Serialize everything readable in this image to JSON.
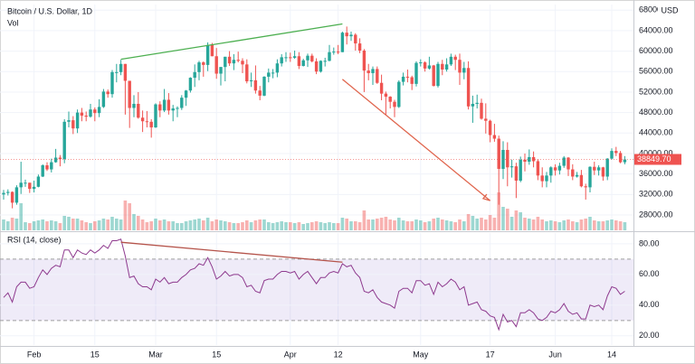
{
  "chart_data": [
    {
      "type": "candlestick",
      "title": "Bitcoin / U.S. Dollar, 1D",
      "volume_label": "Vol",
      "currency": "USD",
      "up_color": "#26a69a",
      "down_color": "#ef5350",
      "grid": true,
      "xticks": [
        {
          "value": 7,
          "label": "Feb"
        },
        {
          "value": 21,
          "label": "15"
        },
        {
          "value": 35,
          "label": "Mar"
        },
        {
          "value": 49,
          "label": "15"
        },
        {
          "value": 66,
          "label": "Apr"
        },
        {
          "value": 77,
          "label": "12"
        },
        {
          "value": 96,
          "label": "May"
        },
        {
          "value": 112,
          "label": "17"
        },
        {
          "value": 127,
          "label": "Jun"
        },
        {
          "value": 140,
          "label": "14"
        }
      ],
      "ylim": [
        25000,
        69100
      ],
      "yticks": [
        {
          "value": 28000,
          "label": "28000.00"
        },
        {
          "value": 32000,
          "label": "32000.00"
        },
        {
          "value": 36000,
          "label": "36000.00"
        },
        {
          "value": 40000,
          "label": "40000.00"
        },
        {
          "value": 44000,
          "label": "44000.00"
        },
        {
          "value": 48000,
          "label": "48000.00"
        },
        {
          "value": 52000,
          "label": "52000.00"
        },
        {
          "value": 56000,
          "label": "56000.00"
        },
        {
          "value": 60000,
          "label": "60000.00"
        },
        {
          "value": 64000,
          "label": "64000.00"
        },
        {
          "value": 68000,
          "label": "68000.00"
        }
      ],
      "open": [
        32000,
        32300,
        32500,
        30400,
        33400,
        34300,
        34300,
        33100,
        33500,
        35500,
        37700,
        36900,
        38300,
        39200,
        38900,
        46200,
        46500,
        44900,
        48000,
        47400,
        47200,
        48600,
        47900,
        49100,
        52100,
        51600,
        55900,
        55900,
        57500,
        54200,
        48900,
        49700,
        47000,
        46300,
        46200,
        45100,
        49600,
        48400,
        50500,
        48400,
        48800,
        48900,
        50900,
        52300,
        54800,
        55900,
        57800,
        57300,
        61200,
        59000,
        55600,
        56900,
        58900,
        57600,
        58300,
        58100,
        57400,
        54100,
        54300,
        52300,
        51300,
        55000,
        55800,
        55800,
        57600,
        58800,
        58800,
        58700,
        59000,
        57100,
        58200,
        59100,
        58000,
        56000,
        58100,
        58100,
        59800,
        59900,
        59800,
        63600,
        62900,
        63200,
        61500,
        60100,
        56200,
        55700,
        56500,
        53800,
        51700,
        51100,
        50100,
        49100,
        54000,
        55000,
        54900,
        53600,
        57700,
        57800,
        56600,
        57200,
        53200,
        57500,
        56400,
        57400,
        58900,
        58300,
        55800,
        56700,
        49200,
        49700,
        49900,
        46800,
        46400,
        43600,
        42900,
        37000,
        40700,
        37300,
        37500,
        34700,
        38800,
        38400,
        39300,
        38500,
        35700,
        34600,
        35700,
        37300,
        36700,
        37600,
        39200,
        36900,
        35500,
        35800,
        33600,
        33400,
        37400,
        36700,
        37300,
        35500,
        39000,
        40500,
        40100,
        38300
      ],
      "high": [
        32900,
        33000,
        32600,
        33800,
        38400,
        34900,
        34300,
        34700,
        35900,
        37900,
        38300,
        39000,
        40900,
        39700,
        46700,
        48200,
        47300,
        48600,
        48900,
        48200,
        49700,
        49000,
        50600,
        52600,
        52500,
        56300,
        57500,
        58300,
        57500,
        54200,
        51400,
        52000,
        48400,
        48300,
        46700,
        49800,
        50200,
        52600,
        51800,
        49500,
        49200,
        51400,
        52400,
        54900,
        57400,
        58100,
        58000,
        61700,
        61600,
        60600,
        56900,
        58900,
        60000,
        59400,
        59900,
        58600,
        58400,
        55800,
        57200,
        53200,
        55100,
        56600,
        56500,
        58400,
        59400,
        59800,
        59700,
        60100,
        59800,
        58500,
        59500,
        59500,
        58600,
        58200,
        58700,
        61200,
        60700,
        61200,
        63800,
        64800,
        63800,
        63500,
        62500,
        60400,
        57500,
        57000,
        57000,
        55400,
        52100,
        51200,
        50500,
        54300,
        55800,
        56400,
        55200,
        58000,
        58400,
        58000,
        58900,
        57300,
        57900,
        58300,
        58600,
        59500,
        59300,
        59500,
        57900,
        58000,
        51300,
        51500,
        50700,
        49800,
        46600,
        45800,
        43500,
        42400,
        42200,
        38800,
        38200,
        39400,
        40000,
        40800,
        40400,
        38900,
        37300,
        36400,
        37500,
        37900,
        38200,
        39500,
        39300,
        37900,
        36400,
        36800,
        34100,
        37500,
        38400,
        37700,
        37400,
        39100,
        41000,
        41300,
        40500,
        39500
      ],
      "low": [
        31000,
        31800,
        29300,
        30000,
        32100,
        33500,
        32300,
        32400,
        33400,
        35400,
        36600,
        36300,
        38200,
        37500,
        38100,
        45100,
        43800,
        44000,
        46300,
        46300,
        47000,
        46300,
        47100,
        48900,
        50900,
        50900,
        53900,
        55300,
        47600,
        45000,
        47100,
        46800,
        44200,
        45100,
        43100,
        45000,
        47100,
        48100,
        47600,
        46300,
        47100,
        48500,
        49300,
        51900,
        53000,
        54300,
        55000,
        56100,
        59000,
        54600,
        53300,
        54100,
        57100,
        56300,
        57800,
        55700,
        53700,
        53000,
        51700,
        50400,
        51200,
        53900,
        54700,
        54900,
        57000,
        57900,
        57900,
        58500,
        56500,
        57000,
        56900,
        57800,
        55500,
        55800,
        57000,
        58000,
        59300,
        59400,
        59800,
        61300,
        62000,
        60100,
        59600,
        52000,
        54300,
        53400,
        53600,
        50400,
        47500,
        48800,
        47100,
        48900,
        53300,
        53900,
        52400,
        53100,
        57000,
        56000,
        56400,
        53100,
        52900,
        55300,
        56000,
        57100,
        56300,
        53400,
        54500,
        48600,
        46000,
        48800,
        46600,
        43900,
        42200,
        42300,
        30000,
        35000,
        33600,
        35300,
        31300,
        34400,
        36500,
        37800,
        37300,
        34800,
        33400,
        33400,
        34300,
        35700,
        35900,
        37200,
        35600,
        34800,
        35300,
        33400,
        31000,
        32400,
        35800,
        35700,
        34700,
        34800,
        38800,
        39500,
        38100,
        37900
      ],
      "close": [
        32300,
        32500,
        30400,
        33400,
        34300,
        34300,
        33100,
        33500,
        35500,
        37700,
        36900,
        38300,
        39200,
        38900,
        46200,
        46500,
        44900,
        48000,
        47400,
        47200,
        48600,
        47900,
        49100,
        52100,
        51600,
        55900,
        55900,
        57500,
        54200,
        48900,
        49700,
        47000,
        46300,
        46200,
        45100,
        49600,
        48400,
        50500,
        48400,
        48800,
        48900,
        50900,
        52300,
        54800,
        55900,
        57800,
        57300,
        61200,
        59000,
        55600,
        56900,
        58900,
        57600,
        58300,
        58100,
        57400,
        54100,
        54300,
        52300,
        51300,
        55000,
        55800,
        55800,
        57600,
        58800,
        58800,
        58700,
        59000,
        57100,
        58200,
        59100,
        58000,
        56000,
        58100,
        58100,
        59800,
        59900,
        59800,
        63600,
        62900,
        63200,
        61500,
        60100,
        56200,
        55700,
        56500,
        53800,
        51700,
        51100,
        50100,
        49100,
        54000,
        55000,
        54900,
        53600,
        57700,
        57800,
        56600,
        57200,
        53200,
        57500,
        56400,
        57400,
        58900,
        58300,
        55800,
        56700,
        49200,
        49700,
        49900,
        46800,
        46400,
        43600,
        42900,
        37000,
        40700,
        37300,
        37500,
        34700,
        38800,
        38400,
        39300,
        38500,
        35700,
        34600,
        35700,
        37300,
        36700,
        37600,
        39200,
        36900,
        35500,
        35800,
        33600,
        33400,
        37400,
        36700,
        37300,
        35500,
        39000,
        40500,
        40100,
        38300,
        38849.7
      ],
      "last_price_label": "38849.70",
      "last_price_color": "#ef5350",
      "volume": [
        12,
        10,
        14,
        13,
        30,
        9,
        8,
        10,
        11,
        12,
        10,
        11,
        10,
        8,
        16,
        15,
        13,
        13,
        11,
        9,
        8,
        10,
        11,
        13,
        12,
        15,
        13,
        12,
        33,
        30,
        18,
        16,
        12,
        9,
        10,
        13,
        11,
        12,
        10,
        10,
        8,
        8,
        10,
        11,
        12,
        13,
        11,
        14,
        10,
        12,
        11,
        10,
        9,
        8,
        8,
        9,
        11,
        9,
        11,
        12,
        12,
        9,
        8,
        9,
        10,
        9,
        9,
        8,
        9,
        7,
        8,
        9,
        10,
        9,
        8,
        9,
        8,
        8,
        14,
        13,
        10,
        10,
        9,
        22,
        12,
        12,
        13,
        14,
        15,
        12,
        11,
        14,
        11,
        10,
        10,
        12,
        11,
        9,
        10,
        13,
        14,
        12,
        11,
        10,
        9,
        12,
        10,
        18,
        16,
        13,
        14,
        12,
        17,
        14,
        42,
        26,
        24,
        15,
        22,
        20,
        14,
        13,
        12,
        15,
        12,
        10,
        11,
        10,
        9,
        11,
        12,
        10,
        9,
        12,
        13,
        15,
        11,
        10,
        10,
        11,
        12,
        11,
        10,
        9
      ],
      "annotations": [
        {
          "color": "#4caf50",
          "x": [
            27,
            78
          ],
          "y": [
            58400,
            65300
          ],
          "arrow": false
        },
        {
          "color": "#e0654d",
          "x": [
            78,
            112
          ],
          "y": [
            54500,
            30800
          ],
          "arrow": true
        }
      ]
    },
    {
      "type": "line",
      "title": "RSI (14, close)",
      "color": "#8e3a8e",
      "band": [
        30,
        70
      ],
      "band_color": "#7e57c2",
      "ylim": [
        14,
        87
      ],
      "yticks": [
        {
          "value": 20,
          "label": "20.00"
        },
        {
          "value": 40,
          "label": "40.00"
        },
        {
          "value": 60,
          "label": "60.00"
        },
        {
          "value": 80,
          "label": "80.00"
        }
      ],
      "values": [
        45,
        48,
        42,
        52,
        55,
        55,
        51,
        52,
        58,
        63,
        60,
        64,
        66,
        65,
        76,
        76,
        71,
        76,
        74,
        73,
        76,
        74,
        76,
        79,
        77,
        82,
        82,
        83,
        72,
        58,
        59,
        54,
        52,
        52,
        50,
        57,
        55,
        58,
        54,
        55,
        55,
        58,
        60,
        63,
        64,
        67,
        66,
        71,
        65,
        57,
        59,
        62,
        59,
        60,
        60,
        58,
        52,
        53,
        49,
        48,
        56,
        57,
        57,
        60,
        62,
        62,
        61,
        62,
        57,
        60,
        62,
        58,
        54,
        58,
        58,
        61,
        62,
        61,
        67,
        65,
        66,
        61,
        58,
        49,
        48,
        50,
        45,
        42,
        41,
        40,
        38,
        49,
        51,
        51,
        48,
        56,
        56,
        53,
        54,
        47,
        55,
        52,
        54,
        57,
        55,
        50,
        52,
        40,
        41,
        42,
        37,
        36,
        33,
        32,
        24,
        34,
        29,
        30,
        26,
        35,
        35,
        37,
        35,
        31,
        30,
        32,
        36,
        35,
        37,
        41,
        36,
        34,
        35,
        31,
        31,
        40,
        39,
        40,
        37,
        46,
        52,
        51,
        47,
        49
      ],
      "annotations": [
        {
          "color": "#b5544b",
          "x": [
            27,
            78
          ],
          "y": [
            81,
            68
          ],
          "arrow": false
        }
      ]
    }
  ]
}
